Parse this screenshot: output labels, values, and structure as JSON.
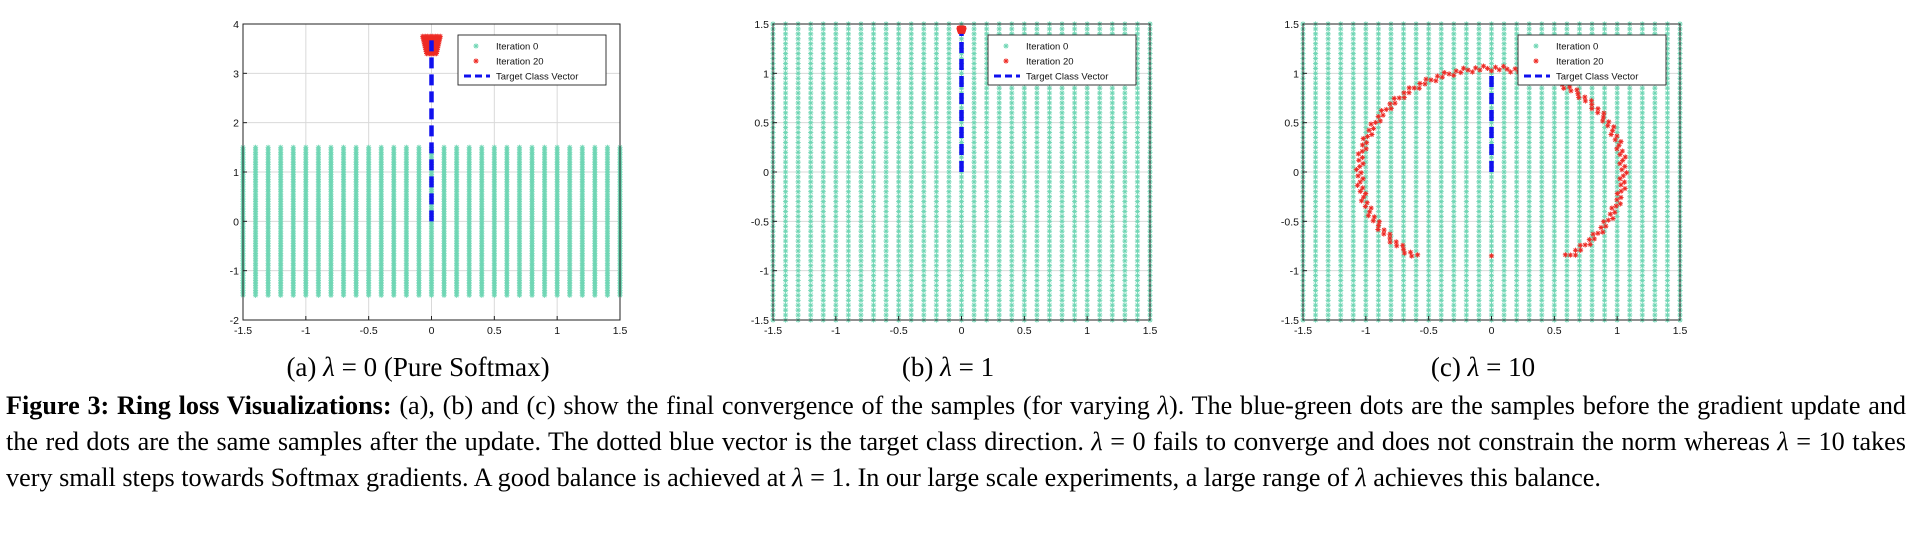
{
  "colors": {
    "samples_before": "#6fd6b4",
    "samples_after": "#ee2a24",
    "target_vector": "#1010ee",
    "grid": "#d9d9d9"
  },
  "legend": [
    "Iteration 0",
    "Iteration 20",
    "Target Class Vector"
  ],
  "chart_data": [
    {
      "type": "scatter",
      "panel": "a",
      "title": "",
      "xlabel": "",
      "ylabel": "",
      "xlim": [
        -1.5,
        1.5
      ],
      "ylim": [
        -2,
        4
      ],
      "xticks": [
        "-1.5",
        "-1",
        "-0.5",
        "0",
        "0.5",
        "1",
        "1.5"
      ],
      "yticks": [
        "-2",
        "-1",
        "0",
        "1",
        "2",
        "3",
        "4"
      ],
      "grid": true,
      "legend_position": "top-right",
      "series": [
        {
          "name": "Iteration 0",
          "kind": "grid_samples",
          "x_range": [
            -1.5,
            1.5
          ],
          "y_range": [
            -1.5,
            1.5
          ],
          "step": 0.1
        },
        {
          "name": "Iteration 20",
          "kind": "cluster",
          "x_range": [
            -0.07,
            0.07
          ],
          "y_range": [
            3.4,
            3.75
          ]
        },
        {
          "name": "Target Class Vector",
          "kind": "vector",
          "from": [
            0,
            0
          ],
          "to": [
            0,
            3.7
          ]
        }
      ]
    },
    {
      "type": "scatter",
      "panel": "b",
      "title": "",
      "xlabel": "",
      "ylabel": "",
      "xlim": [
        -1.5,
        1.5
      ],
      "ylim": [
        -1.5,
        1.5
      ],
      "xticks": [
        "-1.5",
        "-1",
        "-0.5",
        "0",
        "0.5",
        "1",
        "1.5"
      ],
      "yticks": [
        "-1.5",
        "-1",
        "-0.5",
        "0",
        "0.5",
        "1",
        "1.5"
      ],
      "grid": true,
      "legend_position": "top-right",
      "series": [
        {
          "name": "Iteration 0",
          "kind": "grid_samples",
          "x_range": [
            -1.5,
            1.5
          ],
          "y_range": [
            -1.5,
            1.5
          ],
          "step": 0.1
        },
        {
          "name": "Iteration 20",
          "kind": "cluster",
          "x_range": [
            -0.02,
            0.02
          ],
          "y_range": [
            1.42,
            1.46
          ]
        },
        {
          "name": "Target Class Vector",
          "kind": "vector",
          "from": [
            0,
            0
          ],
          "to": [
            0,
            1.4
          ]
        }
      ]
    },
    {
      "type": "scatter",
      "panel": "c",
      "title": "",
      "xlabel": "",
      "ylabel": "",
      "xlim": [
        -1.5,
        1.5
      ],
      "ylim": [
        -1.5,
        1.5
      ],
      "xticks": [
        "-1.5",
        "-1",
        "-0.5",
        "0",
        "0.5",
        "1",
        "1.5"
      ],
      "yticks": [
        "-1.5",
        "-1",
        "-0.5",
        "0",
        "0.5",
        "1",
        "1.5"
      ],
      "grid": true,
      "legend_position": "top-right",
      "series": [
        {
          "name": "Iteration 0",
          "kind": "grid_samples",
          "x_range": [
            -1.5,
            1.5
          ],
          "y_range": [
            -1.5,
            1.5
          ],
          "step": 0.1
        },
        {
          "name": "Iteration 20",
          "kind": "ring",
          "radius": 1.05,
          "angle_from_deg": -55,
          "angle_to_deg": 235,
          "extra_points": [
            [
              0,
              -0.85
            ]
          ]
        },
        {
          "name": "Target Class Vector",
          "kind": "vector",
          "from": [
            0,
            0
          ],
          "to": [
            0,
            1.0
          ]
        }
      ]
    }
  ],
  "subcaptions": [
    {
      "label": "(a)",
      "lambda": "λ",
      "rest": " = 0 (Pure Softmax)"
    },
    {
      "label": "(b)",
      "lambda": "λ",
      "rest": " = 1"
    },
    {
      "label": "(c)",
      "lambda": "λ",
      "rest": " = 10"
    }
  ],
  "caption": {
    "lead": "Figure 3: Ring loss Visualizations:",
    "t1": " (a), (b) and (c) show the final convergence of the samples (for varying ",
    "t2": "). The blue-green dots are the samples before the gradient update and the red dots are the same samples after the update. The dotted blue vector is the target class direction. ",
    "t3": " = 0 fails to converge and does not constrain the norm whereas ",
    "t4": " = 10 takes very small steps towards Softmax gradients. A good balance is achieved at ",
    "t5": " = 1. In our large scale experiments, a large range of ",
    "t6": " achieves this balance.",
    "lambda": "λ"
  }
}
